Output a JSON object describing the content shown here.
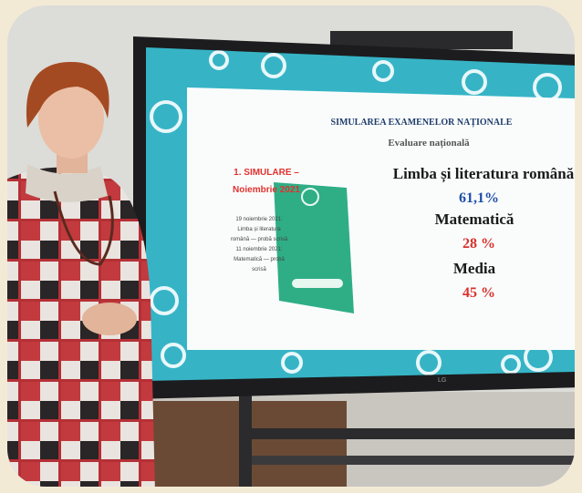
{
  "slide": {
    "title": "SIMULAREA EXAMENELOR NAȚIONALE",
    "subtitle": "Evaluare națională",
    "left_heading": [
      "1. SIMULARE –",
      "Noiembrie 2021"
    ],
    "schedule": [
      "19 noiembrie 2021:",
      "Limba și literatura",
      "română — probă scrisă",
      "11 noiembrie 2021:",
      "Matematică — probă",
      "scrisă"
    ],
    "results": [
      {
        "subject": "Limba și literatura română",
        "score": "61,1%"
      },
      {
        "subject": "Matematică",
        "score": "28 %"
      },
      {
        "subject": "Media",
        "score": "45 %"
      }
    ]
  },
  "tv_brand": "LG"
}
